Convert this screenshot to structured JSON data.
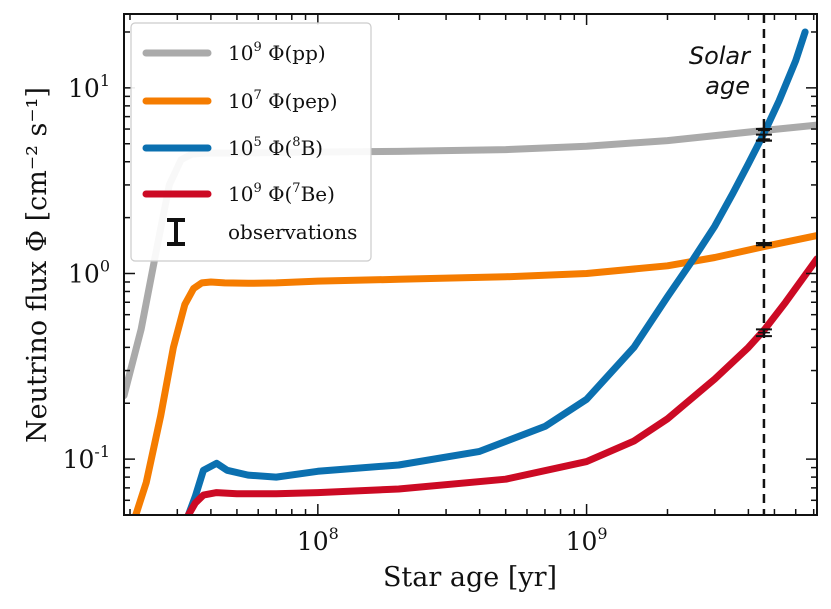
{
  "chart_data": {
    "type": "line",
    "xlabel": "Star age [yr]",
    "ylabel": "Neutrino flux Φ [cm⁻² s⁻¹]",
    "xscale": "log",
    "yscale": "log",
    "xlim": [
      19000000,
      7200000000
    ],
    "ylim": [
      0.05,
      25
    ],
    "x_ticks": [
      {
        "value": 100000000,
        "base": "10",
        "exp": "8"
      },
      {
        "value": 1000000000,
        "base": "10",
        "exp": "9"
      }
    ],
    "y_ticks": [
      {
        "value": 0.1,
        "base": "10",
        "exp": "-1"
      },
      {
        "value": 1,
        "base": "10",
        "exp": "0"
      },
      {
        "value": 10,
        "base": "10",
        "exp": "1"
      }
    ],
    "legend_position": "top-left",
    "series": [
      {
        "name": "10⁹ Φ(pp)",
        "legend": {
          "coef": "10",
          "exp": "9",
          "pre": " Φ(pp)",
          "sup": "",
          "post": ""
        },
        "color": "#aaaaaa",
        "x": [
          19000000,
          22000000,
          25000000,
          28000000,
          31000000,
          34000000,
          38000000,
          50000000,
          80000000,
          200000000,
          500000000,
          1000000000,
          2000000000,
          4600000000,
          7200000000
        ],
        "y": [
          0.22,
          0.5,
          1.3,
          3.0,
          4.1,
          4.4,
          4.45,
          4.45,
          4.5,
          4.55,
          4.65,
          4.85,
          5.2,
          5.9,
          6.3
        ]
      },
      {
        "name": "10⁷ Φ(pep)",
        "legend": {
          "coef": "10",
          "exp": "7",
          "pre": " Φ(pep)",
          "sup": "",
          "post": ""
        },
        "color": "#f57c00",
        "x": [
          20000000,
          23000000,
          26000000,
          29000000,
          32000000,
          34500000,
          37000000,
          40000000,
          45000000,
          55000000,
          70000000,
          100000000,
          200000000,
          500000000,
          1000000000,
          2000000000,
          3000000000,
          4600000000,
          7200000000
        ],
        "y": [
          0.04,
          0.075,
          0.17,
          0.4,
          0.68,
          0.83,
          0.89,
          0.9,
          0.89,
          0.885,
          0.89,
          0.91,
          0.93,
          0.96,
          1.0,
          1.1,
          1.22,
          1.4,
          1.6
        ]
      },
      {
        "name": "10⁵ Φ(⁸B)",
        "legend": {
          "coef": "10",
          "exp": "5",
          "pre": " Φ(",
          "sup": "8",
          "post": "B)"
        },
        "color": "#0b70b0",
        "x": [
          33000000,
          35000000,
          37500000,
          42000000,
          46000000,
          55000000,
          70000000,
          100000000,
          200000000,
          400000000,
          700000000,
          1000000000,
          1500000000,
          2000000000,
          2500000000,
          3000000000,
          3500000000,
          4000000000,
          4600000000,
          5200000000,
          6000000000,
          6500000000
        ],
        "y": [
          0.05,
          0.063,
          0.087,
          0.095,
          0.087,
          0.082,
          0.08,
          0.086,
          0.093,
          0.11,
          0.15,
          0.21,
          0.4,
          0.75,
          1.2,
          1.8,
          2.7,
          3.9,
          5.8,
          8.5,
          14.0,
          20.0
        ]
      },
      {
        "name": "10⁹ Φ(⁷Be)",
        "legend": {
          "coef": "10",
          "exp": "9",
          "pre": " Φ(",
          "sup": "7",
          "post": "Be)"
        },
        "color": "#cc0a24",
        "x": [
          33000000,
          35000000,
          37500000,
          42000000,
          50000000,
          70000000,
          100000000,
          200000000,
          500000000,
          1000000000,
          1500000000,
          2000000000,
          3000000000,
          4000000000,
          4600000000,
          5500000000,
          7200000000
        ],
        "y": [
          0.05,
          0.058,
          0.064,
          0.066,
          0.065,
          0.065,
          0.066,
          0.069,
          0.078,
          0.097,
          0.125,
          0.165,
          0.27,
          0.4,
          0.5,
          0.7,
          1.2
        ]
      }
    ],
    "observations": {
      "label": "observations",
      "x": 4570000000,
      "points": [
        {
          "y": 5.9,
          "ylow": 5.2,
          "yhigh": 6.0
        },
        {
          "y": 5.3,
          "ylow": 5.2,
          "yhigh": 5.6
        },
        {
          "y": 1.44,
          "ylow": 1.42,
          "yhigh": 1.46
        },
        {
          "y": 0.48,
          "ylow": 0.46,
          "yhigh": 0.5
        }
      ]
    },
    "solar_age": {
      "x": 4570000000,
      "label_line1": "Solar",
      "label_line2": "age"
    }
  }
}
